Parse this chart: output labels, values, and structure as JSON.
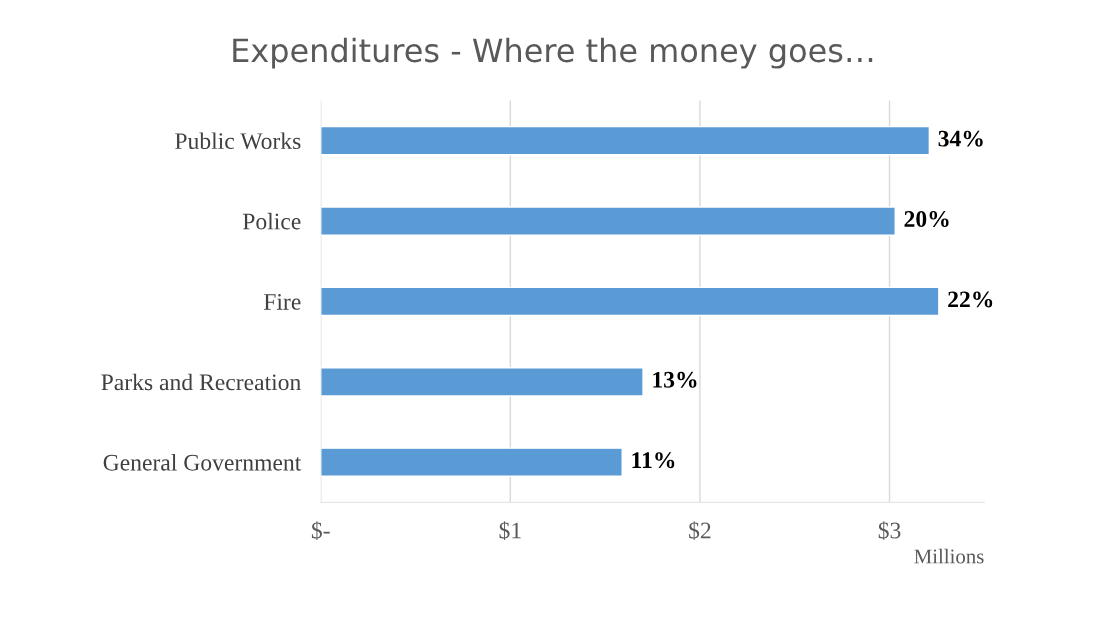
{
  "chart_data": {
    "type": "bar",
    "orientation": "horizontal",
    "title": "Expenditures - Where the money goes…",
    "categories": [
      "Public Works",
      "Police",
      "Fire",
      "Parks and Recreation",
      "General Government"
    ],
    "values": [
      3.21,
      3.03,
      3.26,
      1.7,
      1.59
    ],
    "annotations": [
      {
        "text": "34%",
        "x": 3.21,
        "y": "Public Works"
      },
      {
        "text": "20%",
        "x": 3.03,
        "y": "Police"
      },
      {
        "text": "22%",
        "x": 3.26,
        "y": "Fire"
      },
      {
        "text": "13%",
        "x": 1.7,
        "y": "Parks and Recreation"
      },
      {
        "text": "11%",
        "x": 1.59,
        "y": "General Government"
      }
    ],
    "color": "#5b9bd5",
    "xlabel": "Millions",
    "xlim": [
      0,
      3.5
    ],
    "xticks": [
      {
        "value": 0,
        "label": "$-"
      },
      {
        "value": 1,
        "label": "$1"
      },
      {
        "value": 2,
        "label": "$2"
      },
      {
        "value": 3,
        "label": "$3"
      }
    ],
    "grid": "x"
  }
}
